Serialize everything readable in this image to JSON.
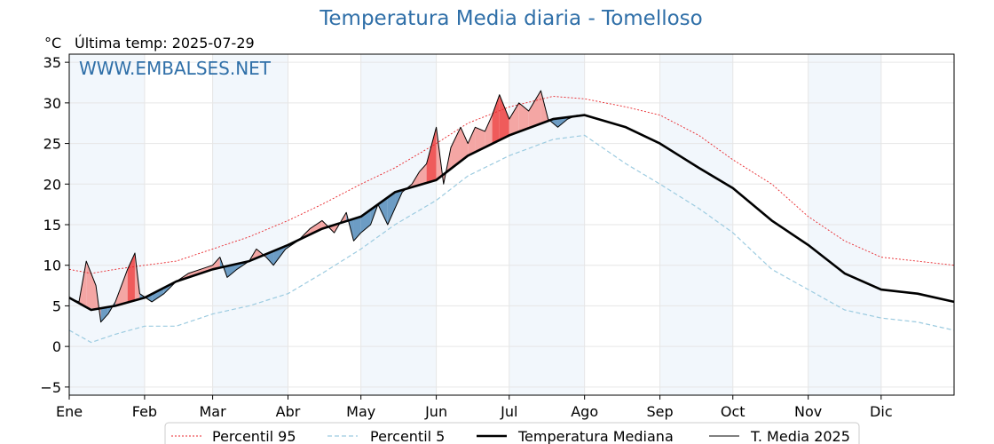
{
  "header": {
    "title": "Temperatura Media diaria - Tomelloso",
    "unit": "°C",
    "last_temp": "Última temp: 2025-07-29",
    "watermark": "WWW.EMBALSES.NET"
  },
  "colors": {
    "title": "#2f6fa8",
    "p95": "#e8262b",
    "p5": "#9ccbe0",
    "median": "#000000",
    "current": "#000000",
    "above_fill": "#f4a6a4",
    "above_fill_strong": "#ef5b5b",
    "below_fill": "#6c9cc4",
    "below_fill_strong": "#1f5a8c",
    "month_band": "#f2f7fc"
  },
  "chart_data": {
    "type": "line",
    "title": "Temperatura Media diaria - Tomelloso",
    "ylabel": "°C",
    "xlabel": "",
    "ylim": [
      -6,
      36
    ],
    "xlim": [
      1,
      365
    ],
    "yticks": [
      -5,
      0,
      5,
      10,
      15,
      20,
      25,
      30,
      35
    ],
    "month_ticks": [
      {
        "label": "Ene",
        "day": 1
      },
      {
        "label": "Feb",
        "day": 32
      },
      {
        "label": "Mar",
        "day": 60
      },
      {
        "label": "Abr",
        "day": 91
      },
      {
        "label": "May",
        "day": 121
      },
      {
        "label": "Jun",
        "day": 152
      },
      {
        "label": "Jul",
        "day": 182
      },
      {
        "label": "Ago",
        "day": 213
      },
      {
        "label": "Sep",
        "day": 244
      },
      {
        "label": "Oct",
        "day": 274
      },
      {
        "label": "Nov",
        "day": 305
      },
      {
        "label": "Dic",
        "day": 335
      }
    ],
    "grid": true,
    "legend_position": "bottom",
    "series": [
      {
        "name": "Percentil 95",
        "style": "dotted",
        "x": [
          1,
          10,
          20,
          32,
          45,
          60,
          75,
          91,
          105,
          121,
          135,
          152,
          165,
          182,
          200,
          213,
          230,
          244,
          260,
          274,
          290,
          305,
          320,
          335,
          350,
          365
        ],
        "values": [
          9.5,
          9.0,
          9.5,
          10.0,
          10.5,
          12.0,
          13.5,
          15.5,
          17.5,
          20.0,
          22.0,
          25.0,
          27.5,
          29.5,
          30.8,
          30.5,
          29.5,
          28.5,
          26.0,
          23.0,
          20.0,
          16.0,
          13.0,
          11.0,
          10.5,
          10.0
        ]
      },
      {
        "name": "Percentil 5",
        "style": "dashed",
        "x": [
          1,
          10,
          20,
          32,
          45,
          60,
          75,
          91,
          105,
          121,
          135,
          152,
          165,
          182,
          200,
          213,
          230,
          244,
          260,
          274,
          290,
          305,
          320,
          335,
          350,
          365
        ],
        "values": [
          2.0,
          0.5,
          1.5,
          2.5,
          2.5,
          4.0,
          5.0,
          6.5,
          9.0,
          12.0,
          15.0,
          18.0,
          21.0,
          23.5,
          25.5,
          26.0,
          22.5,
          20.0,
          17.0,
          14.0,
          9.5,
          7.0,
          4.5,
          3.5,
          3.0,
          2.0
        ]
      },
      {
        "name": "Temperatura Mediana",
        "style": "solid-thick",
        "x": [
          1,
          10,
          20,
          32,
          45,
          60,
          75,
          91,
          105,
          121,
          135,
          152,
          165,
          182,
          200,
          213,
          230,
          244,
          260,
          274,
          290,
          305,
          320,
          335,
          350,
          365
        ],
        "values": [
          6.0,
          4.5,
          5.0,
          6.0,
          8.0,
          9.5,
          10.5,
          12.5,
          14.5,
          16.0,
          19.0,
          20.5,
          23.5,
          26.0,
          28.0,
          28.5,
          27.0,
          25.0,
          22.0,
          19.5,
          15.5,
          12.5,
          9.0,
          7.0,
          6.5,
          5.5
        ]
      },
      {
        "name": "T. Media 2025",
        "style": "solid-thin",
        "x": [
          1,
          5,
          8,
          12,
          14,
          17,
          20,
          25,
          28,
          30,
          35,
          40,
          45,
          50,
          55,
          60,
          63,
          66,
          70,
          75,
          78,
          82,
          85,
          90,
          95,
          100,
          105,
          110,
          115,
          118,
          121,
          125,
          128,
          132,
          135,
          138,
          142,
          145,
          148,
          152,
          155,
          158,
          162,
          165,
          168,
          172,
          175,
          178,
          182,
          186,
          190,
          195,
          198,
          202,
          206,
          210
        ],
        "values": [
          6.0,
          5.5,
          10.5,
          7.5,
          3.0,
          4.0,
          5.5,
          9.5,
          11.5,
          6.5,
          5.5,
          6.5,
          8.0,
          9.0,
          9.5,
          10.0,
          11.0,
          8.5,
          9.5,
          10.5,
          12.0,
          11.0,
          10.0,
          12.0,
          13.0,
          14.5,
          15.5,
          14.0,
          16.5,
          13.0,
          14.0,
          15.0,
          17.5,
          15.0,
          17.0,
          19.0,
          20.0,
          21.5,
          22.5,
          27.0,
          20.0,
          24.5,
          27.0,
          25.0,
          27.0,
          26.5,
          28.5,
          31.0,
          28.0,
          30.0,
          29.0,
          31.5,
          28.0,
          27.0,
          28.0,
          28.5
        ]
      }
    ]
  },
  "legend": {
    "p95": "Percentil 95",
    "p5": "Percentil 5",
    "median": "Temperatura Mediana",
    "current": "T. Media 2025"
  }
}
